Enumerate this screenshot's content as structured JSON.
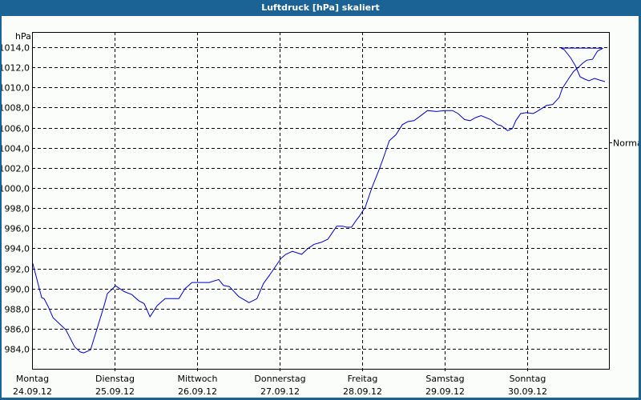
{
  "window": {
    "title": "Luftdruck [hPa] skaliert"
  },
  "colors": {
    "frame": "#1c6395",
    "background": "#fbfdfb",
    "line": "#0000cc",
    "grid": "#000000"
  },
  "chart_data": {
    "type": "line",
    "title": "Luftdruck [hPa] skaliert",
    "xlabel": "",
    "ylabel": "hPa",
    "ylim": [
      982.0,
      1015.5
    ],
    "y_ticks": [
      984.0,
      986.0,
      988.0,
      990.0,
      992.0,
      994.0,
      996.0,
      998.0,
      1000.0,
      1002.0,
      1004.0,
      1006.0,
      1008.0,
      1010.0,
      1012.0,
      1014.0
    ],
    "y_tick_labels": [
      "984,0",
      "986,0",
      "988,0",
      "990,0",
      "992,0",
      "994,0",
      "996,0",
      "998,0",
      "1000,0",
      "1002,0",
      "1004,0",
      "1006,0",
      "1008,0",
      "1010,0",
      "1012,0",
      "1014,0"
    ],
    "x_unit": "hours since 24.09.12 00:00",
    "xlim": [
      0,
      168
    ],
    "x_ticks": [
      0,
      24,
      48,
      72,
      96,
      120,
      144
    ],
    "x_tick_labels": [
      {
        "day": "Montag",
        "date": "24.09.12"
      },
      {
        "day": "Dienstag",
        "date": "25.09.12"
      },
      {
        "day": "Mittwoch",
        "date": "26.09.12"
      },
      {
        "day": "Donnerstag",
        "date": "27.09.12"
      },
      {
        "day": "Freitag",
        "date": "28.09.12"
      },
      {
        "day": "Samstag",
        "date": "29.09.12"
      },
      {
        "day": "Sonntag",
        "date": "30.09.12"
      }
    ],
    "grid": true,
    "annotations": [
      {
        "text": "Normal",
        "y": 1004.5,
        "position": "right-axis"
      }
    ],
    "series": [
      {
        "name": "Luftdruck",
        "x": [
          0.2,
          2.8,
          3.5,
          4.7,
          6.1,
          8.6,
          9.8,
          12.4,
          14.0,
          15.0,
          17.0,
          20.7,
          21.2,
          21.9,
          23.8,
          24.2,
          26.8,
          29.0,
          31.0,
          32.6,
          34.3,
          36.4,
          38.7,
          42.7,
          44.5,
          46.5,
          48.5,
          51.5,
          54.3,
          55.7,
          57.4,
          60.1,
          63.1,
          65.4,
          67.3,
          69.2,
          70.8,
          72.4,
          73.8,
          75.7,
          78.4,
          80.3,
          82.0,
          84.1,
          86.0,
          87.4,
          88.6,
          90.3,
          91.5,
          92.9,
          94.3,
          95.2,
          96.9,
          98.8,
          100.9,
          102.3,
          103.9,
          105.8,
          107.7,
          109.3,
          111.1,
          112.7,
          115.0,
          117.6,
          119.9,
          122.3,
          123.9,
          125.8,
          127.4,
          129.0,
          130.6,
          133.4,
          135.3,
          136.4,
          138.3,
          139.7,
          140.7,
          142.1,
          143.8,
          145.7,
          146.8,
          149.6,
          151.4,
          153.3,
          154.2,
          156.1,
          157.5,
          158.9,
          160.1,
          161.3,
          163.0,
          164.4,
          166.0
        ],
        "y": [
          992.5,
          989.1,
          989.0,
          988.2,
          987.1,
          986.3,
          985.9,
          984.2,
          983.7,
          983.6,
          983.9,
          988.0,
          988.6,
          989.5,
          990.1,
          990.3,
          989.7,
          989.4,
          988.8,
          988.5,
          987.2,
          988.3,
          989.0,
          989.0,
          990.0,
          990.6,
          990.6,
          990.6,
          990.9,
          990.3,
          990.2,
          989.2,
          988.6,
          989.0,
          990.5,
          991.4,
          992.2,
          993.0,
          993.4,
          993.7,
          993.4,
          994.0,
          994.4,
          994.6,
          994.9,
          995.6,
          996.2,
          996.2,
          996.1,
          996.1,
          996.8,
          997.2,
          998.1,
          1000.0,
          1001.8,
          1003.1,
          1004.7,
          1005.3,
          1006.3,
          1006.6,
          1006.7,
          1007.1,
          1007.7,
          1007.6,
          1007.7,
          1007.7,
          1007.4,
          1006.8,
          1006.7,
          1007.0,
          1007.2,
          1006.8,
          1006.3,
          1006.2,
          1005.7,
          1005.9,
          1006.7,
          1007.4,
          1007.5,
          1007.4,
          1007.6,
          1008.2,
          1008.3,
          1009.0,
          1009.9,
          1010.9,
          1011.6,
          1012.0,
          1012.4,
          1012.7,
          1012.8,
          1013.6,
          1013.9
        ]
      }
    ]
  }
}
